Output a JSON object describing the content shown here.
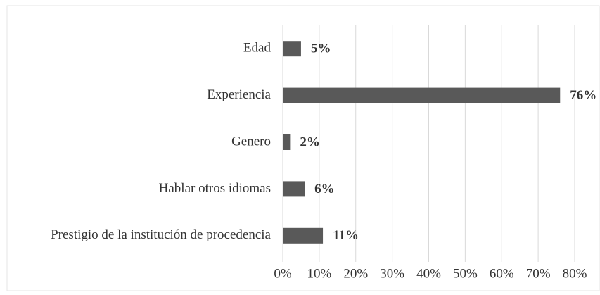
{
  "chart_data": {
    "type": "bar",
    "orientation": "horizontal",
    "categories": [
      "Edad",
      "Experiencia",
      "Genero",
      "Hablar otros idiomas",
      "Prestigio de la institución de procedencia"
    ],
    "values": [
      5,
      76,
      2,
      6,
      11
    ],
    "value_labels": [
      "5%",
      "76%",
      "2%",
      "6%",
      "11%"
    ],
    "color": "#595959",
    "xlim": [
      0,
      80
    ],
    "xticks": [
      {
        "value": 0,
        "label": "0%"
      },
      {
        "value": 10,
        "label": "10%"
      },
      {
        "value": 20,
        "label": "20%"
      },
      {
        "value": 30,
        "label": "30%"
      },
      {
        "value": 40,
        "label": "40%"
      },
      {
        "value": 50,
        "label": "50%"
      },
      {
        "value": 60,
        "label": "60%"
      },
      {
        "value": 70,
        "label": "70%"
      },
      {
        "value": 80,
        "label": "80%"
      }
    ],
    "grid": true
  }
}
